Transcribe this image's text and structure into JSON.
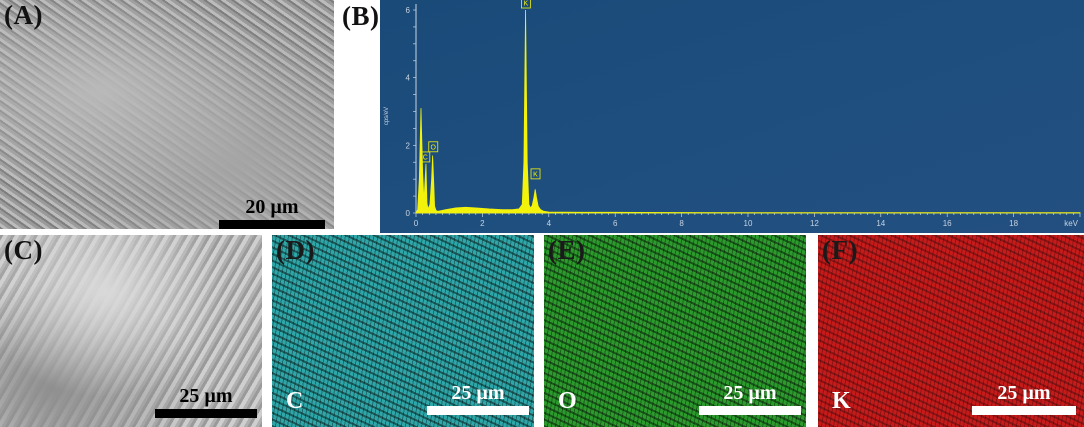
{
  "panels": {
    "a": {
      "letter": "(A)",
      "scalebar": "20 µm",
      "bar_color": "#000000"
    },
    "b": {
      "letter": "(B)"
    },
    "c": {
      "letter": "(C)",
      "scalebar": "25 µm",
      "bar_color": "#000000"
    },
    "d": {
      "letter": "(D)",
      "element": "C",
      "scalebar": "25 µm",
      "bar_color": "#ffffff"
    },
    "e": {
      "letter": "(E)",
      "element": "O",
      "scalebar": "25 µm",
      "bar_color": "#ffffff"
    },
    "f": {
      "letter": "(F)",
      "element": "K",
      "scalebar": "25 µm",
      "bar_color": "#ffffff"
    }
  },
  "colors": {
    "spectrum_bg": "#1f4f7f",
    "spectrum_line": "#f2f20a",
    "axis_text": "#c7d3e2",
    "map_c": "#2fa6a8",
    "map_o": "#2c9a2c",
    "map_k": "#c51b1b"
  },
  "chart_data": {
    "type": "line",
    "title": "",
    "xlabel": "keV",
    "ylabel": "cps/eV",
    "xlim": [
      0,
      20
    ],
    "ylim": [
      0,
      6
    ],
    "x_ticks": [
      0,
      2,
      4,
      6,
      8,
      10,
      12,
      14,
      16,
      18
    ],
    "y_ticks": [
      0,
      2,
      4,
      6
    ],
    "series": [
      {
        "x": [
          0.0,
          0.05,
          0.1,
          0.15,
          0.2,
          0.24,
          0.28,
          0.3,
          0.33,
          0.36,
          0.42,
          0.47,
          0.5,
          0.53,
          0.56,
          0.6,
          0.65,
          0.7,
          0.9,
          1.2,
          1.5,
          1.8,
          2.2,
          2.6,
          2.9,
          3.1,
          3.2,
          3.25,
          3.3,
          3.35,
          3.4,
          3.45,
          3.5,
          3.55,
          3.59,
          3.63,
          3.68,
          3.75,
          3.85,
          4.0,
          5.0,
          6.0,
          8.0,
          10.0,
          12.0,
          14.0,
          16.0,
          18.0,
          20.0
        ],
        "y": [
          0.0,
          0.1,
          1.0,
          3.1,
          1.2,
          0.35,
          1.1,
          1.45,
          0.3,
          0.12,
          0.25,
          1.0,
          1.7,
          1.0,
          0.2,
          0.08,
          0.05,
          0.06,
          0.1,
          0.15,
          0.17,
          0.15,
          0.12,
          0.1,
          0.1,
          0.12,
          0.25,
          1.5,
          6.0,
          1.5,
          0.25,
          0.15,
          0.22,
          0.45,
          0.7,
          0.45,
          0.2,
          0.1,
          0.05,
          0.03,
          0.02,
          0.02,
          0.015,
          0.01,
          0.01,
          0.01,
          0.01,
          0.01,
          0.01
        ]
      }
    ],
    "peak_labels": [
      {
        "text": "K",
        "x": 3.31,
        "y": 6.0
      },
      {
        "text": "C",
        "x": 0.28,
        "y": 1.45
      },
      {
        "text": "O",
        "x": 0.52,
        "y": 1.75
      },
      {
        "text": "K",
        "x": 3.6,
        "y": 0.95
      }
    ]
  }
}
